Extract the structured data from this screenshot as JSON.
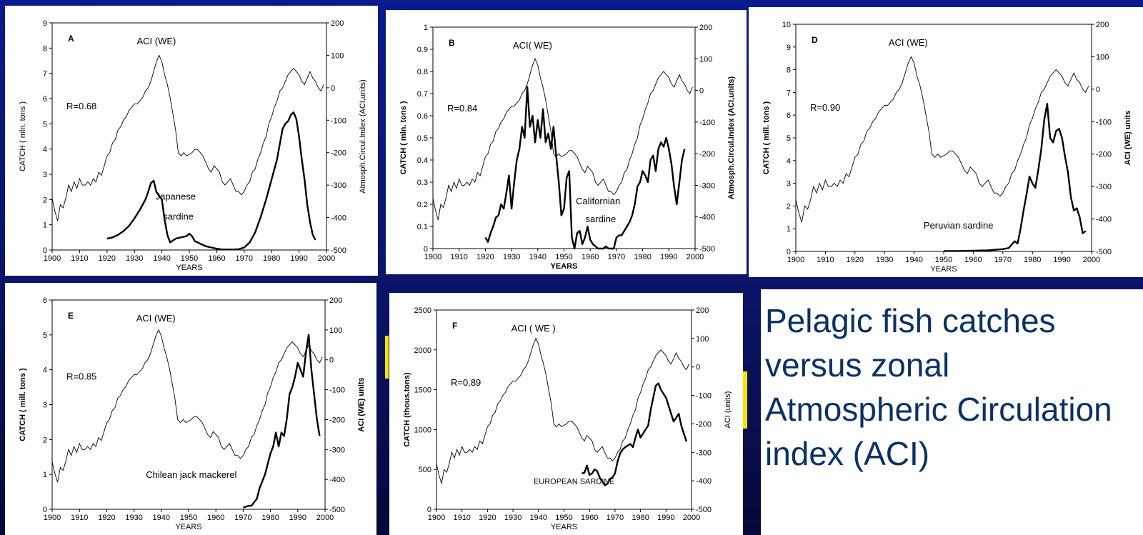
{
  "slide": {
    "caption": "Pelagic fish catches versus zonal Atmospheric Circulation index (ACI)",
    "colors": {
      "background": "#0b1a8c",
      "caption": "#0a3166",
      "line": "#000000"
    }
  },
  "common": {
    "x_label": "YEARS",
    "x_ticks": [
      "1900",
      "1910",
      "1920",
      "1930",
      "1940",
      "1950",
      "1960",
      "1970",
      "1980",
      "1990",
      "2000"
    ],
    "aci_ticks": [
      "200",
      "100",
      "0",
      "-100",
      "-200",
      "-300",
      "-400",
      "-500"
    ],
    "aci_series": {
      "x": [
        1900,
        1901,
        1902,
        1903,
        1904,
        1905,
        1906,
        1907,
        1908,
        1909,
        1910,
        1911,
        1912,
        1913,
        1914,
        1915,
        1916,
        1917,
        1918,
        1919,
        1920,
        1921,
        1922,
        1923,
        1924,
        1925,
        1926,
        1927,
        1928,
        1929,
        1930,
        1931,
        1932,
        1933,
        1934,
        1935,
        1936,
        1937,
        1938,
        1939,
        1940,
        1941,
        1942,
        1943,
        1944,
        1945,
        1946,
        1947,
        1948,
        1949,
        1950,
        1951,
        1952,
        1953,
        1954,
        1955,
        1956,
        1957,
        1958,
        1959,
        1960,
        1961,
        1962,
        1963,
        1964,
        1965,
        1966,
        1967,
        1968,
        1969,
        1970,
        1971,
        1972,
        1973,
        1974,
        1975,
        1976,
        1977,
        1978,
        1979,
        1980,
        1981,
        1982,
        1983,
        1984,
        1985,
        1986,
        1987,
        1988,
        1989,
        1990,
        1991,
        1992,
        1993,
        1994,
        1995,
        1996,
        1997,
        1998,
        1999
      ],
      "y": [
        -340,
        -380,
        -410,
        -360,
        -370,
        -340,
        -300,
        -320,
        -290,
        -310,
        -280,
        -300,
        -300,
        -290,
        -300,
        -280,
        -290,
        -260,
        -270,
        -240,
        -210,
        -200,
        -170,
        -160,
        -130,
        -120,
        -100,
        -90,
        -70,
        -60,
        -50,
        -50,
        -40,
        -30,
        -10,
        0,
        20,
        50,
        80,
        100,
        80,
        40,
        10,
        -30,
        -80,
        -130,
        -200,
        -210,
        -200,
        -210,
        -205,
        -200,
        -190,
        -190,
        -200,
        -210,
        -230,
        -250,
        -260,
        -240,
        -250,
        -260,
        -290,
        -300,
        -290,
        -280,
        -300,
        -320,
        -320,
        -330,
        -320,
        -300,
        -290,
        -260,
        -250,
        -220,
        -200,
        -170,
        -150,
        -110,
        -90,
        -60,
        -40,
        -10,
        0,
        20,
        40,
        50,
        60,
        50,
        40,
        20,
        10,
        30,
        50,
        30,
        20,
        0,
        -10,
        10
      ]
    }
  },
  "chart_data": [
    {
      "type": "line",
      "panel_label": "A",
      "aci_label": "ACI (WE)",
      "correlation": "R=0.68",
      "series_label": [
        "Japanese",
        "sardine"
      ],
      "xlabel": "YEARS",
      "ylabel": "CATCH ( mln. tons )",
      "y2label": "Atmosph.Circul.Index (ACI,units)",
      "xlim": [
        1900,
        2000
      ],
      "ylim": [
        0,
        9
      ],
      "y2lim": [
        -500,
        200
      ],
      "y_ticks": [
        "0",
        "1",
        "2",
        "3",
        "4",
        "5",
        "6",
        "7",
        "8",
        "9"
      ],
      "catch": {
        "x": [
          1920,
          1922,
          1924,
          1926,
          1928,
          1930,
          1932,
          1934,
          1935,
          1936,
          1937,
          1938,
          1940,
          1941,
          1942,
          1943,
          1945,
          1947,
          1949,
          1950,
          1951,
          1952,
          1954,
          1956,
          1958,
          1960,
          1962,
          1964,
          1966,
          1968,
          1970,
          1972,
          1974,
          1976,
          1978,
          1980,
          1982,
          1983,
          1984,
          1985,
          1986,
          1987,
          1988,
          1989,
          1990,
          1991,
          1992,
          1993,
          1994,
          1995,
          1996
        ],
        "y": [
          0.45,
          0.5,
          0.6,
          0.75,
          0.95,
          1.25,
          1.6,
          2.0,
          2.3,
          2.65,
          2.75,
          2.3,
          2.0,
          1.2,
          0.6,
          0.3,
          0.45,
          0.5,
          0.55,
          0.65,
          0.55,
          0.35,
          0.25,
          0.15,
          0.1,
          0.05,
          0.02,
          0.02,
          0.02,
          0.03,
          0.1,
          0.3,
          0.7,
          1.3,
          2.0,
          2.8,
          3.6,
          4.2,
          4.8,
          5.0,
          5.1,
          5.35,
          5.45,
          5.2,
          4.5,
          3.6,
          2.8,
          1.8,
          1.1,
          0.6,
          0.4
        ]
      }
    },
    {
      "type": "line",
      "panel_label": "B",
      "aci_label": "ACI( WE)",
      "correlation": "R=0.84",
      "series_label": [
        "Californian",
        "sardine"
      ],
      "xlabel": "YEARS",
      "ylabel": "CATCH ( mln. tons )",
      "y2label": "Atmosph.Circul.Index (ACI,units)",
      "xlim": [
        1900,
        2000
      ],
      "ylim": [
        0,
        1
      ],
      "y2lim": [
        -500,
        200
      ],
      "y_ticks": [
        "0",
        "0.1",
        "0.2",
        "0.3",
        "0.4",
        "0.5",
        "0.6",
        "0.7",
        "0.8",
        "0.9",
        "1"
      ],
      "catch": {
        "x": [
          1920,
          1921,
          1922,
          1923,
          1924,
          1925,
          1926,
          1927,
          1928,
          1929,
          1930,
          1931,
          1932,
          1933,
          1934,
          1935,
          1936,
          1937,
          1938,
          1939,
          1940,
          1941,
          1942,
          1943,
          1944,
          1945,
          1946,
          1947,
          1948,
          1949,
          1950,
          1951,
          1952,
          1953,
          1954,
          1955,
          1956,
          1957,
          1958,
          1959,
          1960,
          1961,
          1962,
          1963,
          1964,
          1965,
          1966,
          1967,
          1968,
          1969,
          1970,
          1971,
          1972,
          1973,
          1974,
          1975,
          1976,
          1977,
          1978,
          1979,
          1980,
          1981,
          1982,
          1983,
          1984,
          1985,
          1986,
          1987,
          1988,
          1989,
          1990,
          1991,
          1992,
          1993,
          1994,
          1995,
          1996
        ],
        "y": [
          0.05,
          0.03,
          0.07,
          0.1,
          0.14,
          0.15,
          0.2,
          0.18,
          0.25,
          0.33,
          0.18,
          0.3,
          0.4,
          0.45,
          0.55,
          0.5,
          0.73,
          0.55,
          0.6,
          0.48,
          0.58,
          0.5,
          0.63,
          0.48,
          0.52,
          0.45,
          0.55,
          0.42,
          0.3,
          0.15,
          0.18,
          0.32,
          0.35,
          0.05,
          0.0,
          0.07,
          0.08,
          0.02,
          0.05,
          0.1,
          0.04,
          0.02,
          0.01,
          0.0,
          0.0,
          0.0,
          0.01,
          0.0,
          0.0,
          0.0,
          0.05,
          0.06,
          0.06,
          0.08,
          0.1,
          0.12,
          0.15,
          0.2,
          0.28,
          0.3,
          0.35,
          0.33,
          0.3,
          0.4,
          0.42,
          0.35,
          0.45,
          0.48,
          0.46,
          0.5,
          0.45,
          0.38,
          0.28,
          0.2,
          0.3,
          0.4,
          0.45
        ]
      }
    },
    {
      "type": "line",
      "panel_label": "D",
      "aci_label": "ACI (WE)",
      "correlation": "R=0.90",
      "series_label": [
        "Peruvian    sardine"
      ],
      "xlabel": "YEARS",
      "ylabel": "CATCH ( mill. tons )",
      "y2label": "ACI (WE) units",
      "xlim": [
        1900,
        2000
      ],
      "ylim": [
        0,
        10
      ],
      "y2lim": [
        -500,
        200
      ],
      "y_ticks": [
        "0",
        "1",
        "2",
        "3",
        "4",
        "5",
        "6",
        "7",
        "8",
        "9",
        "10"
      ],
      "catch": {
        "x": [
          1950,
          1955,
          1960,
          1965,
          1970,
          1972,
          1973,
          1974,
          1975,
          1976,
          1977,
          1978,
          1979,
          1980,
          1981,
          1982,
          1983,
          1984,
          1985,
          1986,
          1987,
          1988,
          1989,
          1990,
          1991,
          1992,
          1993,
          1994,
          1995,
          1996,
          1997,
          1998
        ],
        "y": [
          0.02,
          0.02,
          0.03,
          0.05,
          0.1,
          0.15,
          0.3,
          0.45,
          0.35,
          1.0,
          1.8,
          2.5,
          3.3,
          3.0,
          2.8,
          3.6,
          4.5,
          5.8,
          6.5,
          5.0,
          4.8,
          5.3,
          5.4,
          5.0,
          4.2,
          3.5,
          2.4,
          1.8,
          1.9,
          1.5,
          0.8,
          0.9
        ]
      }
    },
    {
      "type": "line",
      "panel_label": "E",
      "aci_label": "ACI (WE)",
      "correlation": "R=0.85",
      "series_label": [
        "Chilean jack  mackerel"
      ],
      "xlabel": "YEARS",
      "ylabel": "CATCH ( mill. tons )",
      "y2label": "ACI (WE) units",
      "xlim": [
        1900,
        2000
      ],
      "ylim": [
        0,
        6
      ],
      "y2lim": [
        -500,
        200
      ],
      "y_ticks": [
        "0",
        "1",
        "2",
        "3",
        "4",
        "5",
        "6"
      ],
      "catch": {
        "x": [
          1970,
          1972,
          1973,
          1974,
          1975,
          1976,
          1977,
          1978,
          1979,
          1980,
          1981,
          1982,
          1983,
          1984,
          1985,
          1986,
          1987,
          1988,
          1989,
          1990,
          1991,
          1992,
          1993,
          1994,
          1995,
          1996,
          1997,
          1998
        ],
        "y": [
          0.05,
          0.1,
          0.1,
          0.2,
          0.3,
          0.6,
          0.8,
          1.0,
          1.3,
          1.6,
          1.8,
          2.2,
          1.8,
          2.2,
          2.1,
          2.6,
          3.3,
          3.5,
          3.8,
          4.2,
          4.0,
          3.8,
          4.5,
          5.0,
          4.0,
          3.3,
          2.6,
          2.1
        ]
      }
    },
    {
      "type": "line",
      "panel_label": "F",
      "aci_label": "ACI ( WE )",
      "correlation": "R=0.89",
      "series_label": [
        "EUROPEAN SARDINE"
      ],
      "xlabel": "YEARS",
      "ylabel": "CATCH (thous.tons)",
      "y2label": "ACI (units)",
      "xlim": [
        1900,
        2000
      ],
      "ylim": [
        0,
        2500
      ],
      "y2lim": [
        -500,
        200
      ],
      "y_ticks": [
        "0",
        "500",
        "1000",
        "1500",
        "2000",
        "2500"
      ],
      "catch": {
        "x": [
          1957,
          1958,
          1959,
          1960,
          1961,
          1962,
          1963,
          1964,
          1965,
          1966,
          1967,
          1968,
          1969,
          1970,
          1971,
          1972,
          1973,
          1974,
          1975,
          1976,
          1977,
          1978,
          1979,
          1980,
          1981,
          1982,
          1983,
          1984,
          1985,
          1986,
          1987,
          1988,
          1989,
          1990,
          1991,
          1992,
          1993,
          1994,
          1995,
          1996,
          1997,
          1998
        ],
        "y": [
          450,
          460,
          550,
          430,
          450,
          500,
          480,
          400,
          350,
          300,
          320,
          380,
          400,
          450,
          600,
          700,
          750,
          780,
          800,
          820,
          780,
          900,
          1000,
          900,
          950,
          1000,
          1050,
          1250,
          1400,
          1550,
          1580,
          1500,
          1450,
          1400,
          1300,
          1200,
          1100,
          1150,
          1200,
          1050,
          950,
          850
        ]
      }
    }
  ]
}
